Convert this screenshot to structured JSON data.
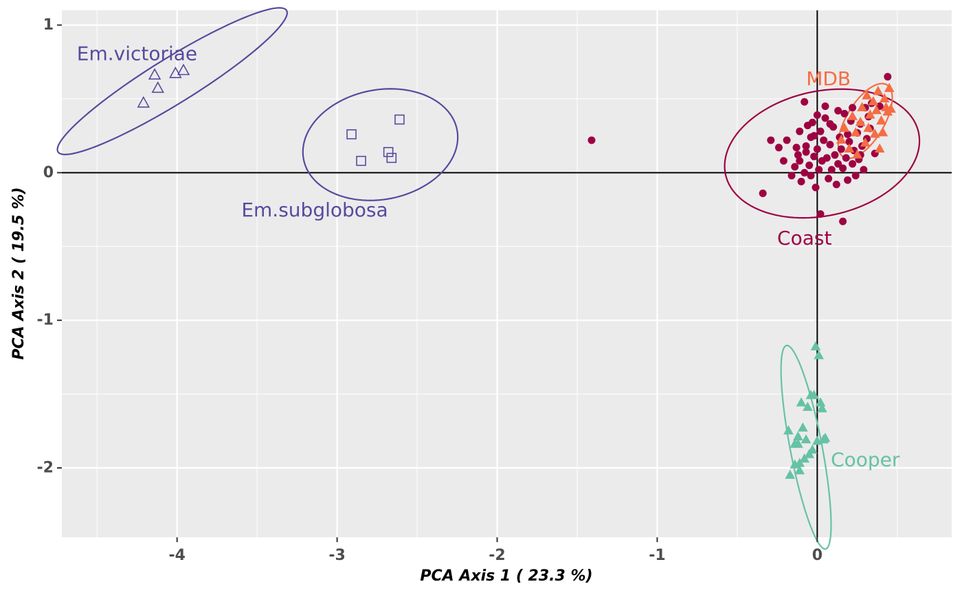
{
  "chart_data": {
    "type": "scatter",
    "xlabel": "PCA Axis 1 ( 23.3 %)",
    "ylabel": "PCA Axis 2 ( 19.5 %)",
    "xlim": [
      -4.72,
      0.84
    ],
    "ylim": [
      -2.47,
      1.1
    ],
    "x_ticks": [
      {
        "value": -4,
        "label": "-4"
      },
      {
        "value": -3,
        "label": "-3"
      },
      {
        "value": -2,
        "label": "-2"
      },
      {
        "value": -1,
        "label": "-1"
      },
      {
        "value": 0,
        "label": "0"
      }
    ],
    "y_ticks": [
      {
        "value": 1,
        "label": "1"
      },
      {
        "value": 0,
        "label": "0"
      },
      {
        "value": -1,
        "label": "-1"
      },
      {
        "value": -2,
        "label": "-2"
      }
    ],
    "grid": true,
    "reference_lines": {
      "x": 0,
      "y": 0
    },
    "series": [
      {
        "name": "Em.victoriae",
        "color": "#574a9e",
        "marker": "open-triangle",
        "ellipse": {
          "cx": -4.03,
          "cy": 0.62,
          "rx": 0.86,
          "ry": 0.15,
          "angle_deg": 34
        },
        "label_pos": {
          "x": -4.25,
          "y": 0.8
        },
        "points": [
          [
            -4.21,
            0.47
          ],
          [
            -4.14,
            0.66
          ],
          [
            -4.12,
            0.57
          ],
          [
            -4.01,
            0.67
          ],
          [
            -3.96,
            0.69
          ]
        ]
      },
      {
        "name": "Em.subglobosa",
        "color": "#574a9e",
        "marker": "open-square",
        "ellipse": {
          "cx": -2.73,
          "cy": 0.19,
          "rx": 0.49,
          "ry": 0.37,
          "angle_deg": 14
        },
        "label_pos": {
          "x": -3.14,
          "y": -0.26
        },
        "points": [
          [
            -2.91,
            0.26
          ],
          [
            -2.85,
            0.08
          ],
          [
            -2.68,
            0.14
          ],
          [
            -2.66,
            0.1
          ],
          [
            -2.61,
            0.36
          ]
        ]
      },
      {
        "name": "Coast",
        "color": "#9e0142",
        "marker": "filled-circle",
        "ellipse": {
          "cx": 0.03,
          "cy": 0.13,
          "rx": 0.62,
          "ry": 0.42,
          "angle_deg": 15
        },
        "label_pos": {
          "x": -0.08,
          "y": -0.45
        },
        "points": [
          [
            -1.41,
            0.22
          ],
          [
            -0.34,
            -0.14
          ],
          [
            -0.29,
            0.22
          ],
          [
            -0.24,
            0.17
          ],
          [
            -0.21,
            0.08
          ],
          [
            -0.19,
            0.22
          ],
          [
            -0.16,
            -0.02
          ],
          [
            -0.14,
            0.04
          ],
          [
            -0.13,
            0.17
          ],
          [
            -0.11,
            0.28
          ],
          [
            -0.11,
            0.08
          ],
          [
            -0.1,
            -0.06
          ],
          [
            -0.08,
            0.0
          ],
          [
            -0.07,
            0.18
          ],
          [
            -0.07,
            0.14
          ],
          [
            -0.06,
            0.32
          ],
          [
            -0.05,
            0.05
          ],
          [
            -0.04,
            0.24
          ],
          [
            -0.04,
            -0.02
          ],
          [
            -0.03,
            0.34
          ],
          [
            -0.02,
            0.11
          ],
          [
            -0.01,
            -0.1
          ],
          [
            0.0,
            0.16
          ],
          [
            0.0,
            0.39
          ],
          [
            0.01,
            0.02
          ],
          [
            0.02,
            0.28
          ],
          [
            0.03,
            0.08
          ],
          [
            0.04,
            0.22
          ],
          [
            0.05,
            0.37
          ],
          [
            0.06,
            0.1
          ],
          [
            0.07,
            -0.04
          ],
          [
            0.08,
            0.19
          ],
          [
            0.09,
            0.02
          ],
          [
            0.1,
            0.31
          ],
          [
            0.11,
            0.12
          ],
          [
            0.12,
            -0.08
          ],
          [
            0.13,
            0.06
          ],
          [
            0.14,
            0.24
          ],
          [
            0.15,
            0.16
          ],
          [
            0.16,
            0.03
          ],
          [
            0.17,
            0.4
          ],
          [
            0.18,
            0.1
          ],
          [
            0.19,
            -0.05
          ],
          [
            0.2,
            0.21
          ],
          [
            0.21,
            0.35
          ],
          [
            0.22,
            0.06
          ],
          [
            0.23,
            0.15
          ],
          [
            0.24,
            -0.02
          ],
          [
            0.25,
            0.27
          ],
          [
            0.26,
            0.09
          ],
          [
            0.27,
            0.33
          ],
          [
            0.28,
            0.18
          ],
          [
            0.29,
            0.02
          ],
          [
            0.3,
            0.44
          ],
          [
            0.31,
            0.23
          ],
          [
            0.32,
            0.38
          ],
          [
            0.34,
            0.47
          ],
          [
            0.36,
            0.13
          ],
          [
            0.39,
            0.45
          ],
          [
            -0.08,
            0.48
          ],
          [
            0.02,
            -0.28
          ],
          [
            0.16,
            -0.33
          ],
          [
            0.44,
            0.65
          ],
          [
            0.05,
            0.45
          ],
          [
            0.13,
            0.42
          ],
          [
            0.33,
            0.3
          ],
          [
            -0.02,
            0.25
          ],
          [
            0.08,
            0.33
          ],
          [
            0.19,
            0.26
          ],
          [
            0.27,
            0.12
          ],
          [
            -0.12,
            0.12
          ],
          [
            0.22,
            0.44
          ]
        ]
      },
      {
        "name": "MDB",
        "color": "#f46d43",
        "marker": "filled-triangle",
        "ellipse": {
          "cx": 0.3,
          "cy": 0.35,
          "rx": 0.28,
          "ry": 0.12,
          "angle_deg": 62
        },
        "label_pos": {
          "x": 0.07,
          "y": 0.63
        },
        "points": [
          [
            0.15,
            0.22
          ],
          [
            0.17,
            0.3
          ],
          [
            0.2,
            0.16
          ],
          [
            0.22,
            0.38
          ],
          [
            0.24,
            0.27
          ],
          [
            0.25,
            0.12
          ],
          [
            0.27,
            0.34
          ],
          [
            0.28,
            0.44
          ],
          [
            0.3,
            0.2
          ],
          [
            0.31,
            0.52
          ],
          [
            0.32,
            0.3
          ],
          [
            0.33,
            0.39
          ],
          [
            0.35,
            0.48
          ],
          [
            0.36,
            0.26
          ],
          [
            0.37,
            0.42
          ],
          [
            0.38,
            0.55
          ],
          [
            0.4,
            0.35
          ],
          [
            0.41,
            0.27
          ],
          [
            0.42,
            0.5
          ],
          [
            0.43,
            0.44
          ],
          [
            0.44,
            0.41
          ],
          [
            0.45,
            0.57
          ],
          [
            0.46,
            0.43
          ],
          [
            0.39,
            0.16
          ]
        ]
      },
      {
        "name": "Cooper",
        "color": "#66c2a5",
        "marker": "filled-triangle",
        "ellipse": {
          "cx": -0.07,
          "cy": -1.86,
          "rx": 0.7,
          "ry": 0.1,
          "angle_deg": -80
        },
        "label_pos": {
          "x": 0.3,
          "y": -1.95
        },
        "points": [
          [
            -0.01,
            -1.18
          ],
          [
            0.01,
            -1.24
          ],
          [
            -0.18,
            -1.75
          ],
          [
            -0.17,
            -2.05
          ],
          [
            -0.14,
            -1.84
          ],
          [
            -0.12,
            -1.79
          ],
          [
            -0.11,
            -1.97
          ],
          [
            -0.11,
            -2.02
          ],
          [
            -0.1,
            -1.56
          ],
          [
            -0.09,
            -1.73
          ],
          [
            -0.08,
            -1.94
          ],
          [
            -0.07,
            -1.81
          ],
          [
            -0.05,
            -1.91
          ],
          [
            -0.04,
            -1.51
          ],
          [
            -0.03,
            -1.88
          ],
          [
            -0.02,
            -1.51
          ],
          [
            0.0,
            -1.82
          ],
          [
            0.02,
            -1.56
          ],
          [
            0.03,
            -1.6
          ],
          [
            0.04,
            -1.81
          ],
          [
            -0.12,
            -1.84
          ],
          [
            -0.06,
            -1.59
          ],
          [
            0.05,
            -1.8
          ],
          [
            -0.14,
            -1.98
          ]
        ]
      }
    ]
  }
}
